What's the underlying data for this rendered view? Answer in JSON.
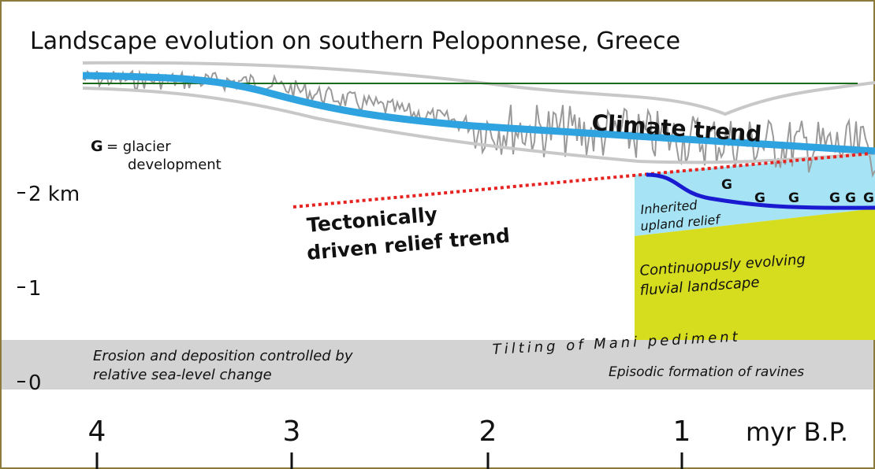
{
  "title": "Landscape evolution on southern Peloponnese, Greece",
  "legend": {
    "symbol": "G",
    "text": "= glacier",
    "text2": "development"
  },
  "y_axis": {
    "labels": [
      "2 km",
      "1",
      "0"
    ]
  },
  "x_axis": {
    "labels": [
      "4",
      "3",
      "2",
      "1"
    ],
    "unit": "myr B.P."
  },
  "climate_trend": "Climate trend",
  "relief_trend": [
    "Tectonically",
    "driven relief trend"
  ],
  "upland": [
    "Inherited",
    "upland relief"
  ],
  "fluvial": [
    "Continuopusly evolving",
    "fluvial landscape"
  ],
  "glacier_markers": [
    "G",
    "G",
    "G",
    "G",
    "G",
    "G"
  ],
  "tilting": "Tilting of Mani pediment",
  "erosion": [
    "Erosion and deposition controlled by",
    "relative sea-level change"
  ],
  "ravines": "Episodic formation of ravines"
}
